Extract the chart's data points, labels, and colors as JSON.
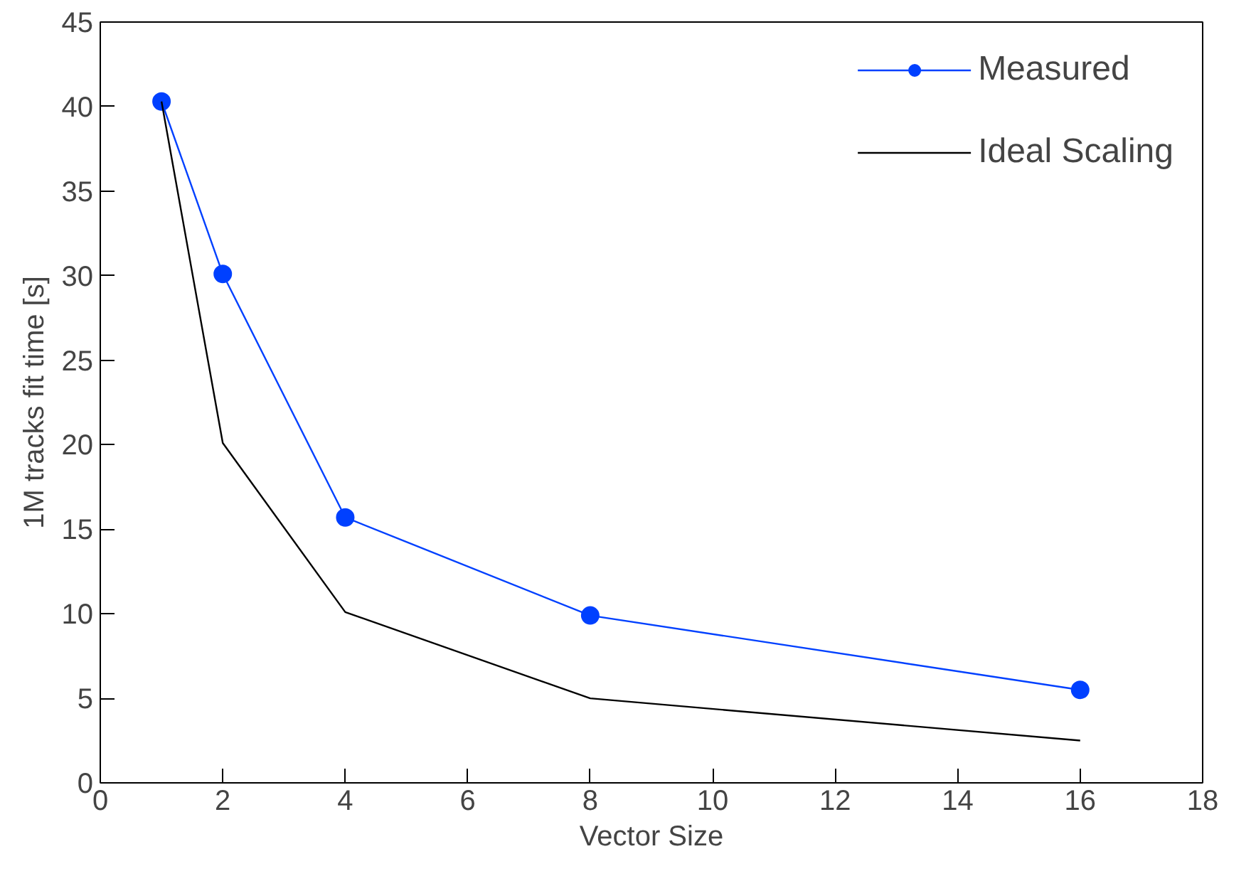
{
  "chart_data": {
    "type": "line",
    "xlabel": "Vector Size",
    "ylabel": "1M tracks fit time [s]",
    "x": [
      1,
      2,
      4,
      8,
      16
    ],
    "series": [
      {
        "name": "Measured",
        "color": "#0040ff",
        "values": [
          40.3,
          30.1,
          15.7,
          9.9,
          5.5
        ],
        "marker": "circle"
      },
      {
        "name": "Ideal Scaling",
        "color": "#000000",
        "values": [
          40.3,
          20.1,
          10.1,
          5.0,
          2.5
        ],
        "marker": "none"
      }
    ],
    "xlim": [
      0,
      18
    ],
    "xticks": [
      0,
      2,
      4,
      6,
      8,
      10,
      12,
      14,
      16,
      18
    ],
    "ylim": [
      0,
      45
    ],
    "yticks": [
      0,
      5,
      10,
      15,
      20,
      25,
      30,
      35,
      40,
      45
    ],
    "grid": false,
    "legend": "top right"
  }
}
